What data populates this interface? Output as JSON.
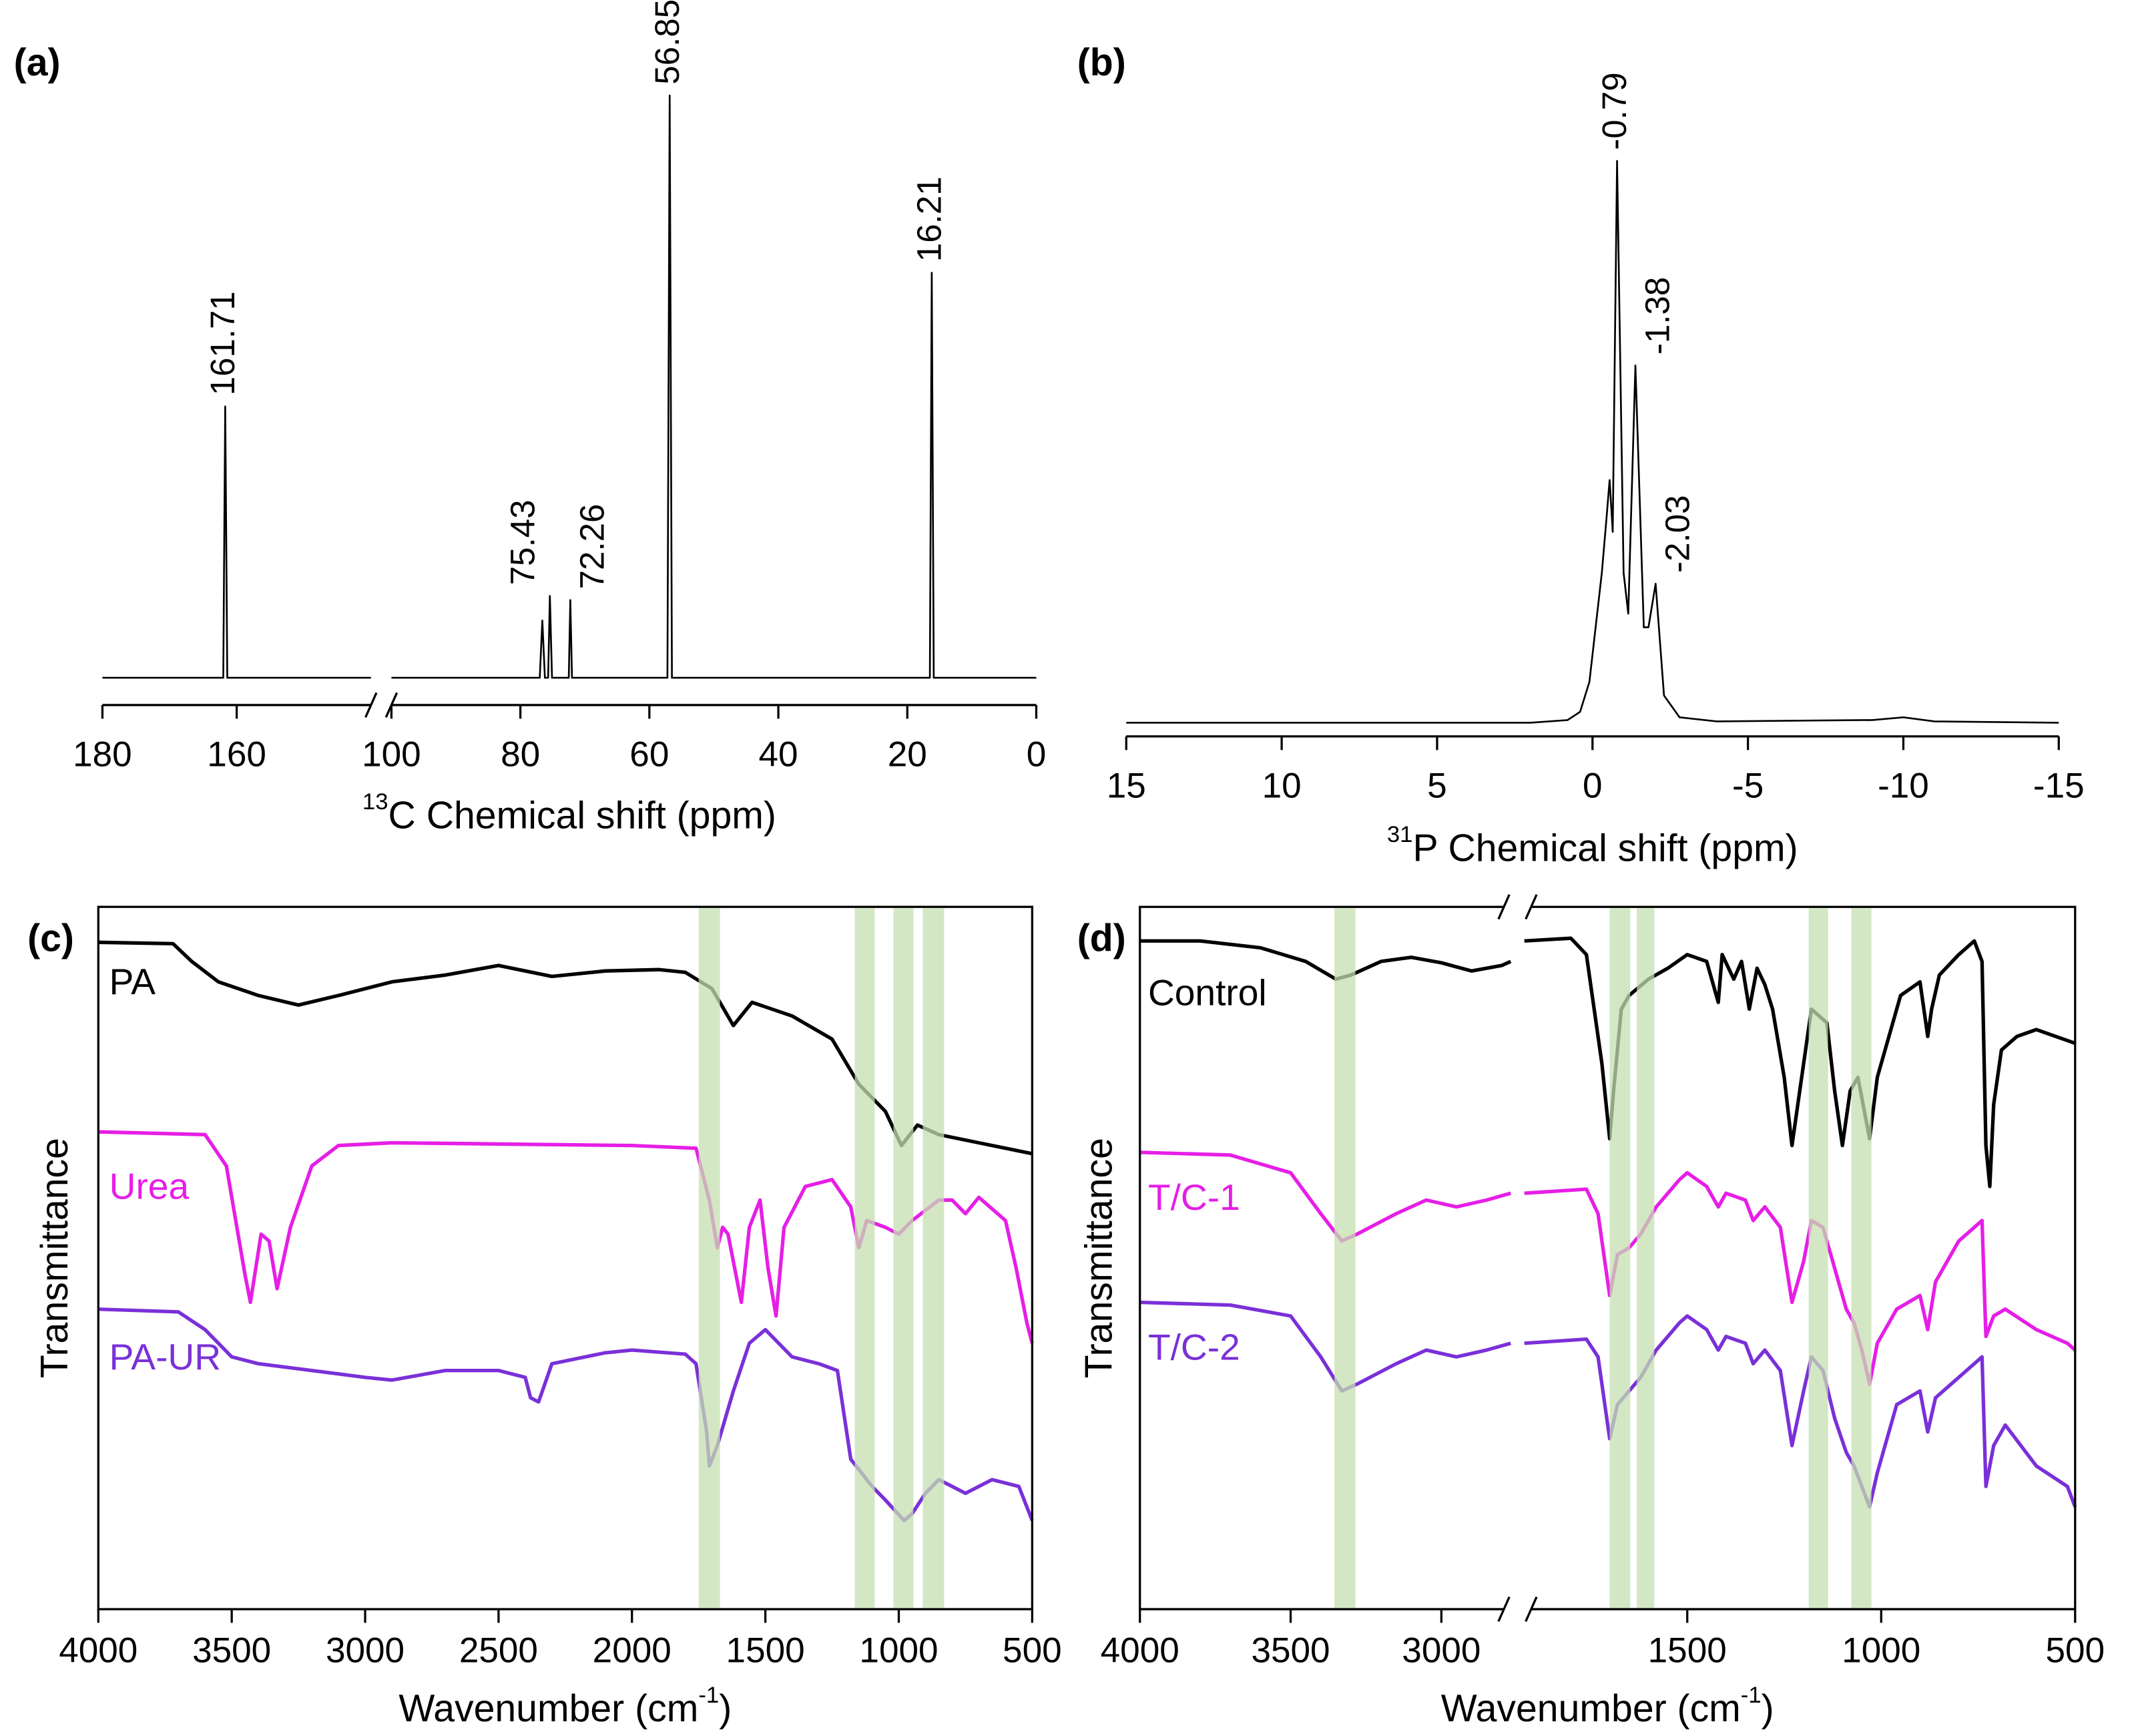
{
  "chart_data": [
    {
      "type": "line",
      "panel_label": "(a)",
      "x_label": [
        {
          "text": "13",
          "sup": true
        },
        {
          "text": "C Chemical shift (ppm)"
        }
      ],
      "xlim": [
        180,
        0
      ],
      "xbreak": [
        140,
        100
      ],
      "xticks": [
        180,
        160,
        100,
        80,
        60,
        40,
        20,
        0
      ],
      "ylim": [
        -20,
        467
      ],
      "series": [
        {
          "color": "#000000",
          "x": [
            180,
            162.0,
            161.71,
            161.4,
            140,
            120,
            100,
            77,
            76.6,
            76.2,
            75.7,
            75.43,
            75.1,
            72.5,
            72.26,
            72.0,
            57.2,
            56.85,
            56.5,
            16.5,
            16.21,
            15.9,
            0
          ],
          "values": [
            0,
            0,
            199,
            0,
            0,
            null,
            0,
            0,
            42,
            0,
            0,
            60,
            0,
            0,
            57,
            0,
            0,
            427,
            0,
            0,
            297,
            0,
            0
          ]
        }
      ],
      "peaks": [
        161.71,
        75.43,
        72.26,
        56.85,
        16.21
      ]
    },
    {
      "type": "line",
      "panel_label": "(b)",
      "x_label": [
        {
          "text": "31",
          "sup": true
        },
        {
          "text": "P Chemical shift (ppm)"
        }
      ],
      "xlim": [
        15,
        -15
      ],
      "xticks": [
        15,
        10,
        5,
        0,
        -5,
        -10,
        -15
      ],
      "ylim": [
        -10,
        500
      ],
      "series": [
        {
          "color": "#000000",
          "x": [
            15,
            2,
            0.8,
            0.4,
            0.1,
            -0.3,
            -0.45,
            -0.55,
            -0.65,
            -0.79,
            -1.0,
            -1.15,
            -1.38,
            -1.65,
            -1.8,
            -2.03,
            -2.3,
            -2.8,
            -4,
            -9,
            -10,
            -11,
            -15
          ],
          "values": [
            0,
            0,
            2,
            8,
            30,
            110,
            150,
            178,
            140,
            412,
            110,
            80,
            262,
            70,
            70,
            102,
            20,
            4,
            1,
            2,
            4,
            1,
            0
          ]
        }
      ],
      "peaks": [
        -0.79,
        -1.38,
        -2.03
      ]
    },
    {
      "type": "line",
      "panel_label": "(c)",
      "x_label": [
        {
          "text": "Wavenumber (cm"
        },
        {
          "text": "-1",
          "sup": true
        },
        {
          "text": ")"
        }
      ],
      "y_label": "Transmittance",
      "xlim": [
        4000,
        500
      ],
      "xticks": [
        4000,
        3500,
        3000,
        2500,
        2000,
        1500,
        1000,
        500
      ],
      "ylim": [
        0,
        515
      ],
      "band_color": "#c5dfb0",
      "bands": [
        [
          1750,
          1670
        ],
        [
          1165,
          1090
        ],
        [
          1020,
          945
        ],
        [
          910,
          830
        ]
      ],
      "series": [
        {
          "name": "PA",
          "color": "#000000",
          "x": [
            4000,
            3720,
            3650,
            3550,
            3400,
            3250,
            3100,
            2900,
            2700,
            2500,
            2300,
            2100,
            1900,
            1800,
            1700,
            1620,
            1550,
            1400,
            1250,
            1150,
            1050,
            990,
            930,
            850,
            700,
            500
          ],
          "values": [
            489,
            488,
            475,
            460,
            450,
            443,
            450,
            460,
            465,
            472,
            464,
            468,
            469,
            467,
            455,
            428,
            445,
            435,
            418,
            385,
            365,
            340,
            355,
            348,
            342,
            334
          ]
        },
        {
          "name": "Urea",
          "color": "#e61ee6",
          "x": [
            4000,
            3600,
            3520,
            3450,
            3430,
            3390,
            3360,
            3330,
            3280,
            3200,
            3100,
            2900,
            2000,
            1760,
            1710,
            1680,
            1660,
            1640,
            1600,
            1590,
            1560,
            1520,
            1490,
            1460,
            1430,
            1350,
            1250,
            1180,
            1150,
            1120,
            1050,
            1000,
            950,
            850,
            800,
            750,
            700,
            600,
            560,
            520,
            500
          ],
          "values": [
            350,
            348,
            325,
            245,
            225,
            275,
            270,
            235,
            280,
            325,
            340,
            342,
            340,
            338,
            300,
            265,
            280,
            275,
            235,
            225,
            280,
            300,
            250,
            215,
            280,
            310,
            315,
            295,
            265,
            285,
            280,
            275,
            285,
            300,
            300,
            290,
            302,
            285,
            250,
            210,
            195
          ]
        },
        {
          "name": "PA-UR",
          "color": "#7a30d8",
          "x": [
            4000,
            3700,
            3600,
            3500,
            3400,
            3200,
            3000,
            2900,
            2700,
            2500,
            2400,
            2380,
            2350,
            2300,
            2100,
            2000,
            1800,
            1760,
            1720,
            1710,
            1680,
            1620,
            1560,
            1500,
            1400,
            1300,
            1230,
            1180,
            1100,
            1050,
            980,
            950,
            900,
            850,
            750,
            650,
            550,
            510,
            500
          ],
          "values": [
            220,
            218,
            205,
            185,
            180,
            175,
            170,
            168,
            175,
            175,
            170,
            155,
            152,
            180,
            188,
            190,
            187,
            180,
            130,
            105,
            120,
            160,
            195,
            205,
            185,
            180,
            175,
            110,
            90,
            80,
            65,
            70,
            85,
            95,
            85,
            95,
            90,
            70,
            65
          ]
        }
      ]
    },
    {
      "type": "line",
      "panel_label": "(d)",
      "x_label": [
        {
          "text": "Wavenumber (cm"
        },
        {
          "text": "-1",
          "sup": true
        },
        {
          "text": ")"
        }
      ],
      "y_label": "Transmittance",
      "xlim": [
        4000,
        500
      ],
      "xbreak": [
        2770,
        1920
      ],
      "xticks": [
        4000,
        3500,
        3000,
        1500,
        1000,
        500
      ],
      "ylim": [
        0,
        515
      ],
      "band_color": "#c5dfb0",
      "bands": [
        [
          3355,
          3285
        ],
        [
          1700,
          1647
        ],
        [
          1630,
          1585
        ],
        [
          1187,
          1137
        ],
        [
          1077,
          1025
        ]
      ],
      "series": [
        {
          "name": "Control",
          "color": "#000000",
          "x": [
            4000,
            3800,
            3600,
            3450,
            3350,
            3300,
            3200,
            3100,
            3000,
            2900,
            2800,
            2770,
            2300,
            1920,
            1800,
            1760,
            1720,
            1700,
            1690,
            1670,
            1650,
            1600,
            1550,
            1500,
            1450,
            1420,
            1410,
            1380,
            1360,
            1340,
            1320,
            1300,
            1280,
            1250,
            1230,
            1210,
            1180,
            1160,
            1140,
            1120,
            1100,
            1080,
            1060,
            1040,
            1030,
            1010,
            950,
            900,
            880,
            870,
            850,
            800,
            760,
            740,
            730,
            720,
            710,
            690,
            650,
            600,
            550,
            500
          ],
          "values": [
            490,
            490,
            485,
            475,
            462,
            465,
            475,
            478,
            474,
            468,
            472,
            475,
            null,
            490,
            492,
            480,
            400,
            345,
            380,
            440,
            450,
            462,
            470,
            480,
            475,
            445,
            480,
            462,
            475,
            440,
            470,
            458,
            440,
            390,
            340,
            380,
            440,
            435,
            430,
            380,
            340,
            380,
            390,
            360,
            345,
            390,
            450,
            460,
            420,
            440,
            465,
            480,
            490,
            475,
            340,
            310,
            370,
            410,
            420,
            425,
            420,
            415
          ]
        },
        {
          "name": "T/C-1",
          "color": "#e61ee6",
          "x": [
            4000,
            3700,
            3500,
            3400,
            3330,
            3280,
            3150,
            3050,
            2950,
            2850,
            2770,
            2300,
            1920,
            1760,
            1730,
            1700,
            1680,
            1650,
            1620,
            1580,
            1520,
            1500,
            1450,
            1420,
            1400,
            1350,
            1330,
            1300,
            1260,
            1230,
            1200,
            1180,
            1150,
            1120,
            1090,
            1070,
            1050,
            1030,
            1010,
            960,
            900,
            880,
            860,
            800,
            740,
            730,
            710,
            680,
            600,
            520,
            500
          ],
          "values": [
            335,
            333,
            320,
            290,
            270,
            275,
            290,
            300,
            295,
            300,
            305,
            null,
            305,
            308,
            290,
            230,
            260,
            265,
            275,
            295,
            315,
            320,
            310,
            295,
            305,
            300,
            285,
            295,
            280,
            225,
            255,
            285,
            280,
            250,
            220,
            210,
            190,
            165,
            195,
            220,
            230,
            205,
            240,
            270,
            285,
            200,
            215,
            220,
            205,
            195,
            190
          ]
        },
        {
          "name": "T/C-2",
          "color": "#7a30d8",
          "x": [
            4000,
            3700,
            3500,
            3400,
            3330,
            3280,
            3150,
            3050,
            2950,
            2850,
            2770,
            2300,
            1920,
            1760,
            1730,
            1700,
            1680,
            1650,
            1620,
            1580,
            1520,
            1500,
            1450,
            1420,
            1400,
            1350,
            1330,
            1300,
            1260,
            1230,
            1200,
            1180,
            1150,
            1120,
            1090,
            1070,
            1050,
            1030,
            1010,
            960,
            900,
            880,
            860,
            800,
            740,
            730,
            710,
            680,
            600,
            520,
            500
          ],
          "values": [
            225,
            223,
            215,
            185,
            160,
            165,
            180,
            190,
            185,
            190,
            195,
            null,
            195,
            198,
            185,
            125,
            150,
            160,
            170,
            190,
            210,
            215,
            205,
            190,
            200,
            195,
            180,
            190,
            175,
            120,
            160,
            185,
            175,
            140,
            115,
            105,
            90,
            75,
            100,
            150,
            160,
            130,
            155,
            170,
            185,
            90,
            120,
            135,
            105,
            90,
            75
          ]
        }
      ]
    }
  ]
}
